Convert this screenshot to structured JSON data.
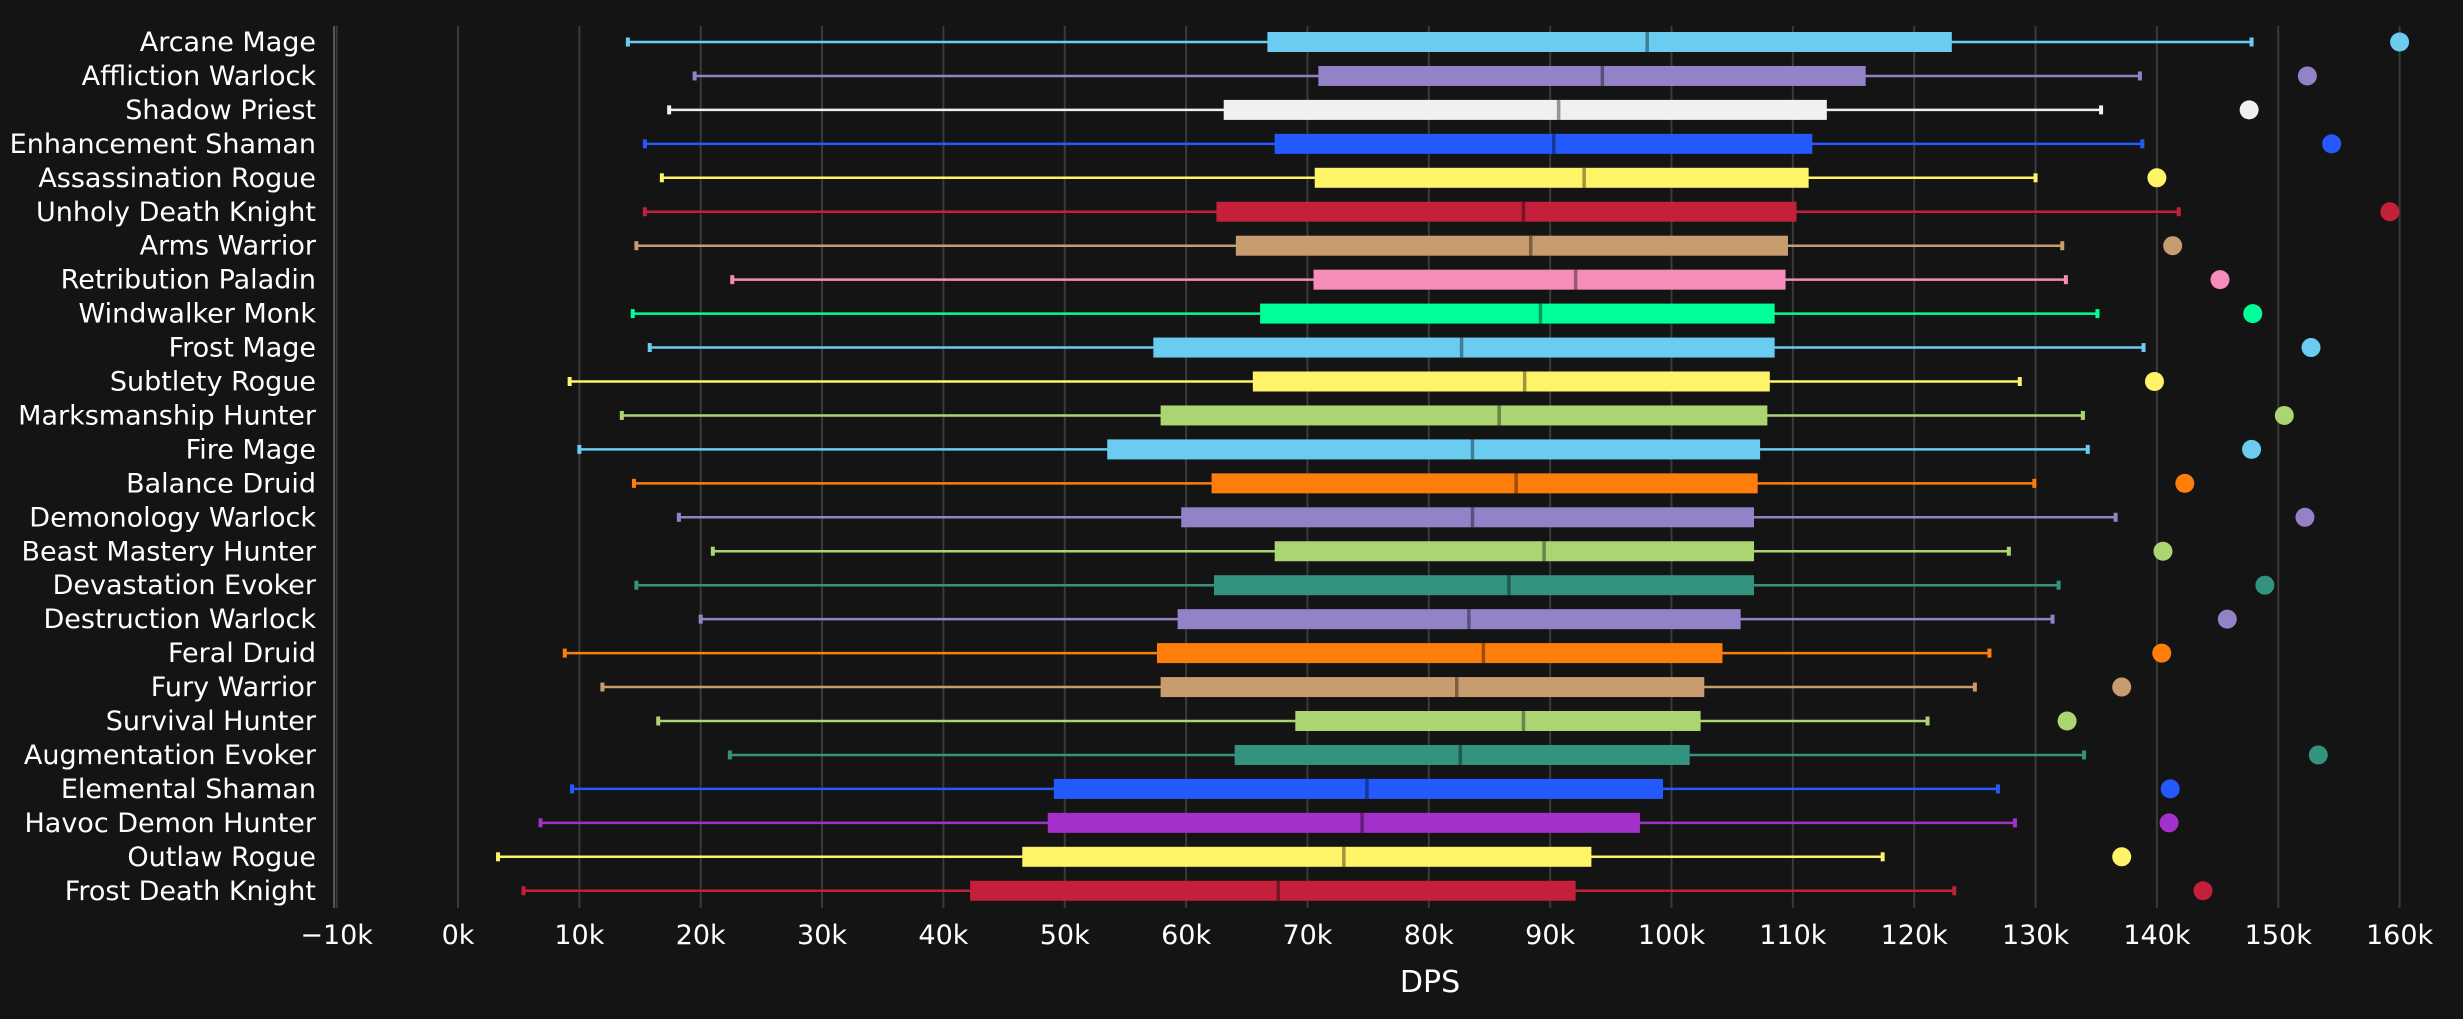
{
  "chart_data": {
    "type": "boxplot",
    "xlabel": "DPS",
    "xlim": [
      -10000,
      160000
    ],
    "x_ticks": [
      -10000,
      0,
      10000,
      20000,
      30000,
      40000,
      50000,
      60000,
      70000,
      80000,
      90000,
      100000,
      110000,
      120000,
      130000,
      140000,
      150000,
      160000
    ],
    "x_tick_labels": [
      "−10k",
      "0k",
      "10k",
      "20k",
      "30k",
      "40k",
      "50k",
      "60k",
      "70k",
      "80k",
      "90k",
      "100k",
      "110k",
      "120k",
      "130k",
      "140k",
      "150k",
      "160k"
    ],
    "grid": "vertical",
    "series": [
      {
        "name": "Arcane Mage",
        "color": "#69ccf0",
        "min": 14000,
        "q1": 66700,
        "median": 98000,
        "q3": 123100,
        "max": 147800,
        "outlier": 160000
      },
      {
        "name": "Affliction Warlock",
        "color": "#9482c9",
        "min": 19500,
        "q1": 70900,
        "median": 94300,
        "q3": 116000,
        "max": 138600,
        "outlier": 152400
      },
      {
        "name": "Shadow Priest",
        "color": "#f0f0f0",
        "min": 17400,
        "q1": 63100,
        "median": 90700,
        "q3": 112800,
        "max": 135400,
        "outlier": 147600
      },
      {
        "name": "Enhancement Shaman",
        "color": "#2459ff",
        "min": 15400,
        "q1": 67300,
        "median": 90300,
        "q3": 111600,
        "max": 138800,
        "outlier": 154400
      },
      {
        "name": "Assassination Rogue",
        "color": "#fff468",
        "min": 16800,
        "q1": 70600,
        "median": 92800,
        "q3": 111300,
        "max": 130000,
        "outlier": 140000
      },
      {
        "name": "Unholy Death Knight",
        "color": "#c41f3b",
        "min": 15400,
        "q1": 62500,
        "median": 87800,
        "q3": 110300,
        "max": 141800,
        "outlier": 159200
      },
      {
        "name": "Arms Warrior",
        "color": "#c79c6e",
        "min": 14700,
        "q1": 64100,
        "median": 88400,
        "q3": 109600,
        "max": 132200,
        "outlier": 141300
      },
      {
        "name": "Retribution Paladin",
        "color": "#f58cba",
        "min": 22600,
        "q1": 70500,
        "median": 92100,
        "q3": 109400,
        "max": 132500,
        "outlier": 145200
      },
      {
        "name": "Windwalker Monk",
        "color": "#00ff96",
        "min": 14400,
        "q1": 66100,
        "median": 89200,
        "q3": 108500,
        "max": 135100,
        "outlier": 147900
      },
      {
        "name": "Frost Mage",
        "color": "#69ccf0",
        "min": 15800,
        "q1": 57300,
        "median": 82700,
        "q3": 108500,
        "max": 138900,
        "outlier": 152700
      },
      {
        "name": "Subtlety Rogue",
        "color": "#fff468",
        "min": 9200,
        "q1": 65500,
        "median": 87900,
        "q3": 108100,
        "max": 128700,
        "outlier": 139800
      },
      {
        "name": "Marksmanship Hunter",
        "color": "#abd473",
        "min": 13500,
        "q1": 57900,
        "median": 85800,
        "q3": 107900,
        "max": 133900,
        "outlier": 150500
      },
      {
        "name": "Fire Mage",
        "color": "#69ccf0",
        "min": 10000,
        "q1": 53500,
        "median": 83600,
        "q3": 107300,
        "max": 134300,
        "outlier": 147800
      },
      {
        "name": "Balance Druid",
        "color": "#ff7d0a",
        "min": 14500,
        "q1": 62100,
        "median": 87200,
        "q3": 107100,
        "max": 129900,
        "outlier": 142300
      },
      {
        "name": "Demonology Warlock",
        "color": "#9482c9",
        "min": 18200,
        "q1": 59600,
        "median": 83600,
        "q3": 106800,
        "max": 136600,
        "outlier": 152200
      },
      {
        "name": "Beast Mastery Hunter",
        "color": "#abd473",
        "min": 21000,
        "q1": 67300,
        "median": 89500,
        "q3": 106800,
        "max": 127800,
        "outlier": 140500
      },
      {
        "name": "Devastation Evoker",
        "color": "#33937f",
        "min": 14700,
        "q1": 62300,
        "median": 86600,
        "q3": 106800,
        "max": 131900,
        "outlier": 148900
      },
      {
        "name": "Destruction Warlock",
        "color": "#9482c9",
        "min": 20000,
        "q1": 59300,
        "median": 83300,
        "q3": 105700,
        "max": 131400,
        "outlier": 145800
      },
      {
        "name": "Feral Druid",
        "color": "#ff7d0a",
        "min": 8800,
        "q1": 57600,
        "median": 84500,
        "q3": 104200,
        "max": 126200,
        "outlier": 140400
      },
      {
        "name": "Fury Warrior",
        "color": "#c79c6e",
        "min": 11900,
        "q1": 57900,
        "median": 82300,
        "q3": 102700,
        "max": 125000,
        "outlier": 137100
      },
      {
        "name": "Survival Hunter",
        "color": "#abd473",
        "min": 16500,
        "q1": 69000,
        "median": 87800,
        "q3": 102400,
        "max": 121100,
        "outlier": 132600
      },
      {
        "name": "Augmentation Evoker",
        "color": "#33937f",
        "min": 22400,
        "q1": 64000,
        "median": 82600,
        "q3": 101500,
        "max": 134000,
        "outlier": 153300
      },
      {
        "name": "Elemental Shaman",
        "color": "#2459ff",
        "min": 9400,
        "q1": 49100,
        "median": 74900,
        "q3": 99300,
        "max": 126900,
        "outlier": 141100
      },
      {
        "name": "Havoc Demon Hunter",
        "color": "#a330c9",
        "min": 6800,
        "q1": 48600,
        "median": 74500,
        "q3": 97400,
        "max": 128300,
        "outlier": 141000
      },
      {
        "name": "Outlaw Rogue",
        "color": "#fff468",
        "min": 3300,
        "q1": 46500,
        "median": 73000,
        "q3": 93400,
        "max": 117400,
        "outlier": 137100
      },
      {
        "name": "Frost Death Knight",
        "color": "#c41f3b",
        "min": 5400,
        "q1": 42200,
        "median": 67600,
        "q3": 92100,
        "max": 123300,
        "outlier": 143800
      }
    ]
  }
}
